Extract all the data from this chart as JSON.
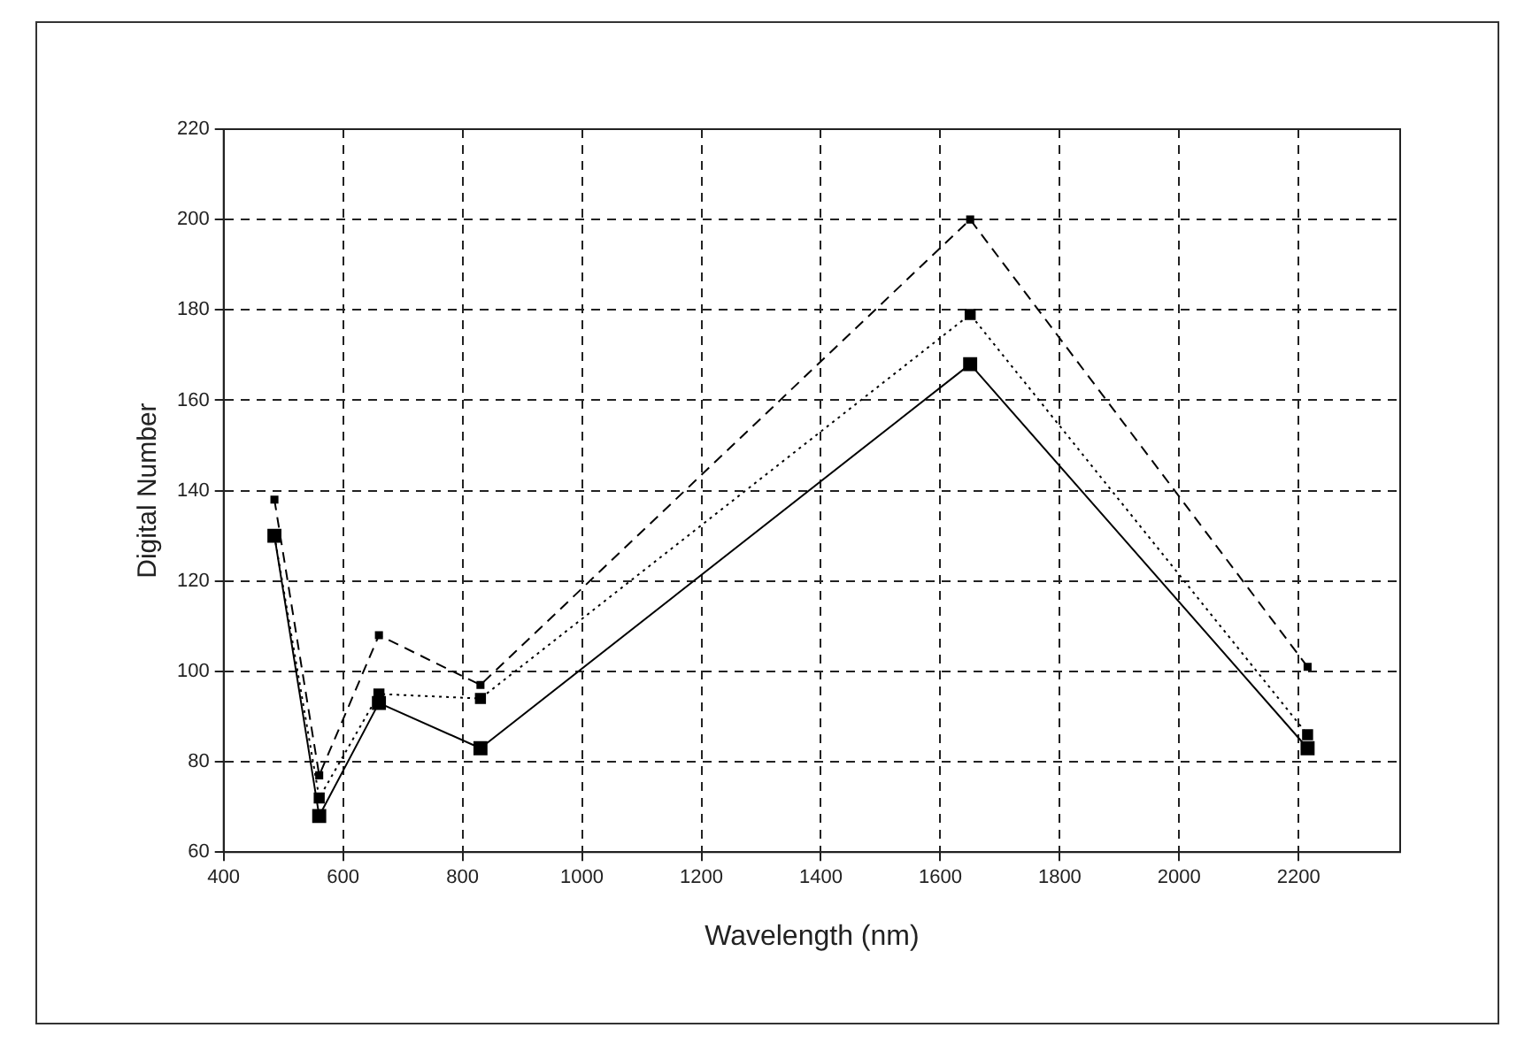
{
  "chart_data": {
    "type": "line",
    "xlabel": "Wavelength (nm)",
    "ylabel": "Digital Number",
    "x": [
      485,
      560,
      660,
      830,
      1650,
      2215
    ],
    "series": [
      {
        "color": "#000000",
        "line_style": "solid",
        "values": [
          130,
          68,
          93,
          83,
          168,
          83
        ]
      },
      {
        "color": "#000000",
        "line_style": "dotted",
        "values": [
          130,
          72,
          95,
          94,
          179,
          86
        ]
      },
      {
        "color": "#000000",
        "line_style": "dashed",
        "values": [
          138,
          77,
          108,
          97,
          200,
          101
        ]
      }
    ],
    "xlim": [
      400,
      2370
    ],
    "xticks": [
      400,
      600,
      800,
      1000,
      1200,
      1400,
      1600,
      1800,
      2000,
      2200
    ],
    "ylim": [
      60,
      220
    ],
    "yticks": [
      60,
      80,
      100,
      120,
      140,
      160,
      180,
      200,
      220
    ],
    "grid": true,
    "legend": false,
    "marker": "square"
  }
}
